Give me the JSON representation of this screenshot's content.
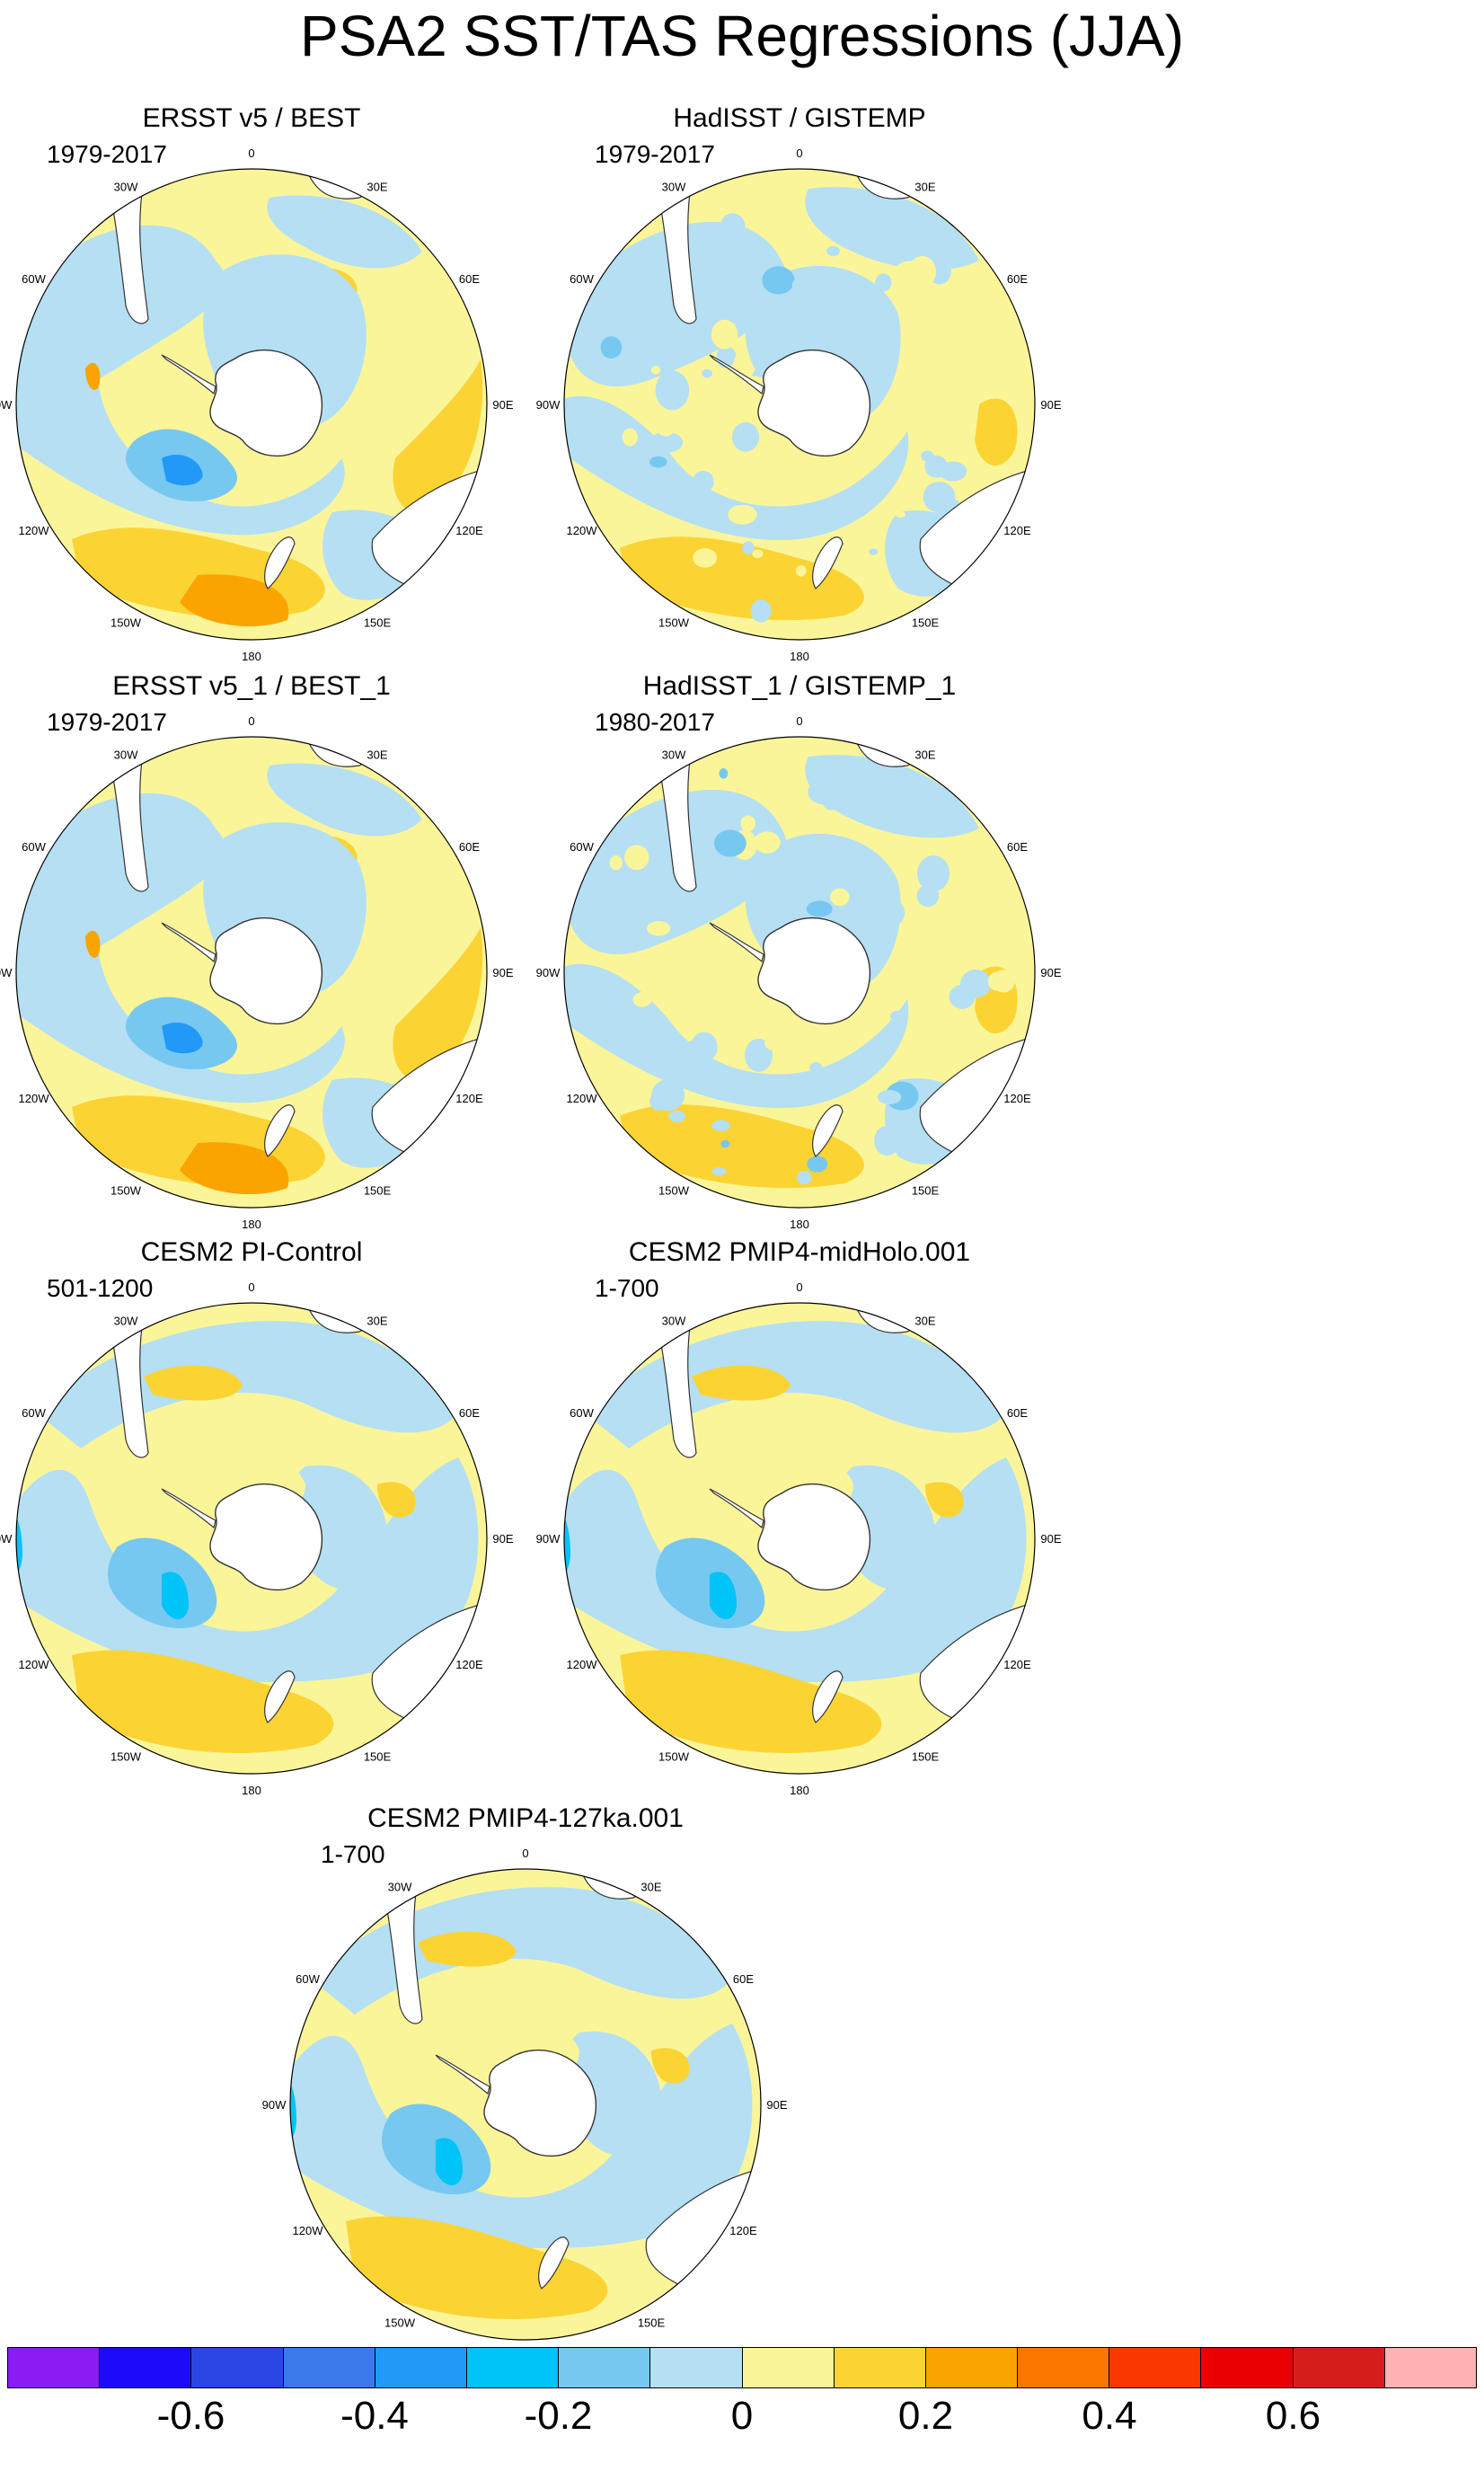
{
  "title": "PSA2 SST/TAS Regressions (JJA)",
  "lon_labels": [
    "0",
    "30E",
    "60E",
    "90E",
    "120E",
    "150E",
    "180",
    "150W",
    "120W",
    "90W",
    "60W",
    "30W"
  ],
  "panels": [
    {
      "name": "panel-ersst-best",
      "title": "ERSST v5 / BEST",
      "period": "1979-2017",
      "pattern": "obs-smooth"
    },
    {
      "name": "panel-hadisst-gistemp",
      "title": "HadISST / GISTEMP",
      "period": "1979-2017",
      "pattern": "obs-noisy"
    },
    {
      "name": "panel-ersst-best-1",
      "title": "ERSST v5_1 / BEST_1",
      "period": "1979-2017",
      "pattern": "obs-smooth"
    },
    {
      "name": "panel-hadisst-gistemp-1",
      "title": "HadISST_1 / GISTEMP_1",
      "period": "1980-2017",
      "pattern": "obs-noisy"
    },
    {
      "name": "panel-cesm2-picontrol",
      "title": "CESM2 PI-Control",
      "period": "501-1200",
      "pattern": "model"
    },
    {
      "name": "panel-cesm2-midholo",
      "title": "CESM2 PMIP4-midHolo.001",
      "period": "1-700",
      "pattern": "model"
    },
    {
      "name": "panel-cesm2-127ka",
      "title": "CESM2 PMIP4-127ka.001",
      "period": "1-700",
      "pattern": "model"
    }
  ],
  "colorbar": {
    "colors": [
      "#8a1bf2",
      "#1d0afa",
      "#2c46e6",
      "#3a78ec",
      "#2099f7",
      "#00c3f6",
      "#76c8f1",
      "#b5dff3",
      "#fbf59a",
      "#fbd434",
      "#fba400",
      "#fb7800",
      "#fb3800",
      "#eb0000",
      "#d51d1d",
      "#feb2b2"
    ],
    "tick_labels": [
      "-0.6",
      "-0.4",
      "-0.2",
      "0",
      "0.2",
      "0.4",
      "0.6"
    ],
    "tick_values": [
      -0.6,
      -0.4,
      -0.2,
      0,
      0.2,
      0.4,
      0.6
    ],
    "min": -0.8,
    "max": 0.8
  }
}
